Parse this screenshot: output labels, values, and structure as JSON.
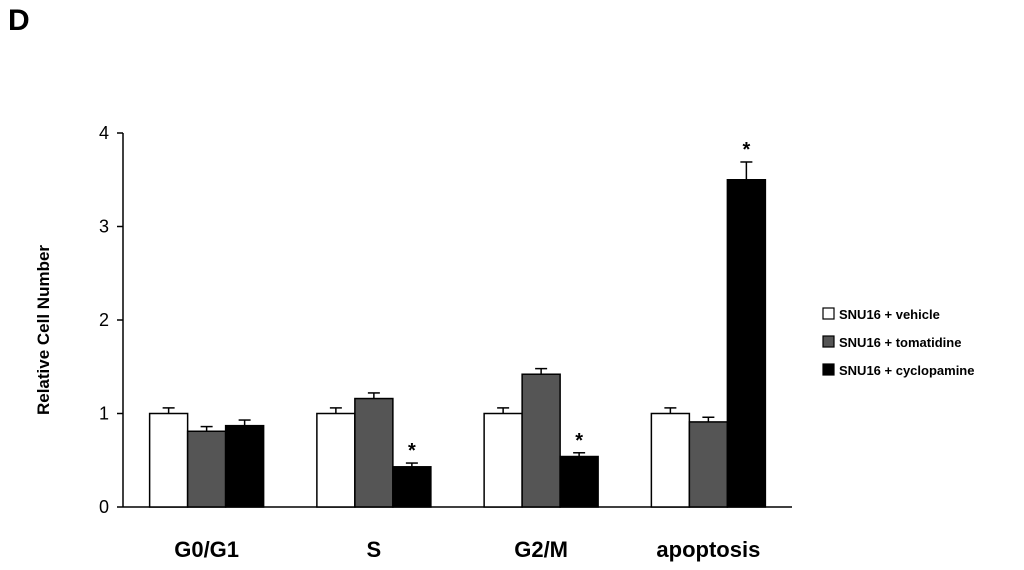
{
  "panel_label": "D",
  "chart_data": {
    "type": "bar",
    "title": "",
    "xlabel": "",
    "ylabel": "Relative Cell Number",
    "ylim": [
      0,
      4
    ],
    "yticks": [
      "0",
      "1",
      "2",
      "3",
      "4"
    ],
    "grid": false,
    "legend_position": "right",
    "categories": [
      "G0/G1",
      "S",
      "G2/M",
      "apoptosis"
    ],
    "series": [
      {
        "name": "SNU16 + vehicle",
        "color": "#ffffff",
        "values": [
          1.0,
          1.0,
          1.0,
          1.0
        ],
        "errors": [
          0.06,
          0.06,
          0.06,
          0.06
        ],
        "significant": [
          false,
          false,
          false,
          false
        ]
      },
      {
        "name": "SNU16 + tomatidine",
        "color": "#555555",
        "values": [
          0.81,
          1.16,
          1.42,
          0.91
        ],
        "errors": [
          0.05,
          0.06,
          0.06,
          0.05
        ],
        "significant": [
          false,
          false,
          false,
          false
        ]
      },
      {
        "name": "SNU16 + cyclopamine",
        "color": "#000000",
        "values": [
          0.87,
          0.43,
          0.54,
          3.5
        ],
        "errors": [
          0.06,
          0.04,
          0.04,
          0.19
        ],
        "significant": [
          false,
          true,
          true,
          true
        ]
      }
    ],
    "significance_marker": "*"
  }
}
